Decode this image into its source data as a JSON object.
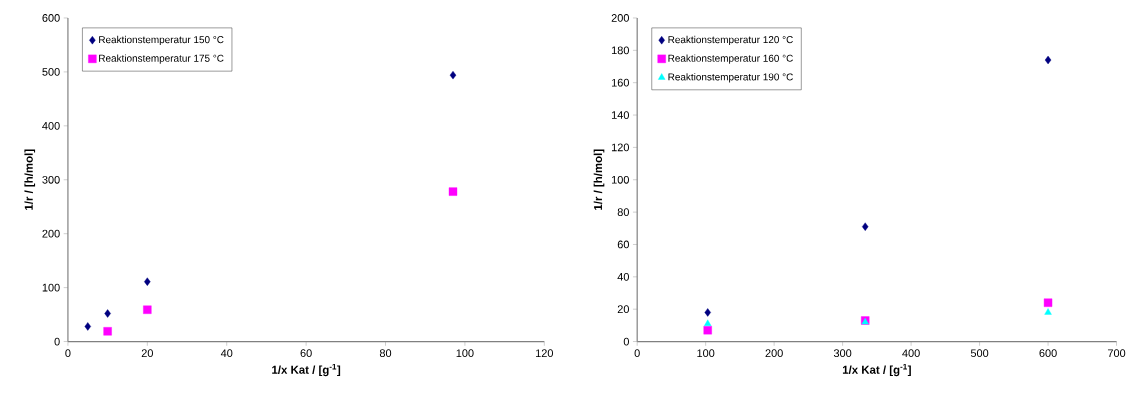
{
  "chart_data": [
    {
      "type": "scatter",
      "xlabel": "1/x Kat / [g$^{-1}$]",
      "ylabel": "1/r / [h/mol]",
      "xlim": [
        0,
        120
      ],
      "ylim": [
        0,
        600
      ],
      "xticks": [
        0,
        20,
        40,
        60,
        80,
        100,
        120
      ],
      "yticks": [
        0,
        100,
        200,
        300,
        400,
        500,
        600
      ],
      "legend": "top left",
      "series": [
        {
          "name": "Reaktionstemperatur 150 °C",
          "color": "#000080",
          "marker": "diamond",
          "x": [
            5,
            10,
            20,
            97
          ],
          "values": [
            28,
            52,
            111,
            494
          ]
        },
        {
          "name": "Reaktionstemperatur 175 °C",
          "color": "#ff00ff",
          "marker": "square",
          "x": [
            10,
            20,
            97
          ],
          "values": [
            19,
            59,
            278
          ]
        }
      ]
    },
    {
      "type": "scatter",
      "xlabel": "1/x Kat / [g$^{-1}$]",
      "ylabel": "1/r / [h/mol]",
      "xlim": [
        0,
        700
      ],
      "ylim": [
        0,
        200
      ],
      "xticks": [
        0,
        100,
        200,
        300,
        400,
        500,
        600,
        700
      ],
      "yticks": [
        0,
        20,
        40,
        60,
        80,
        100,
        120,
        140,
        160,
        180,
        200
      ],
      "legend": "top left",
      "series": [
        {
          "name": "Reaktionstemperatur 120 °C",
          "color": "#000080",
          "marker": "diamond",
          "x": [
            103,
            333,
            600
          ],
          "values": [
            18,
            71,
            174
          ]
        },
        {
          "name": "Reaktionstemperatur 160 °C",
          "color": "#ff00ff",
          "marker": "square",
          "x": [
            103,
            333,
            600
          ],
          "values": [
            7,
            13,
            24
          ]
        },
        {
          "name": "Reaktionstemperatur 190 °C",
          "color": "#00ffff",
          "marker": "triangle",
          "x": [
            103,
            333,
            600
          ],
          "values": [
            11,
            12,
            18
          ]
        }
      ]
    }
  ]
}
